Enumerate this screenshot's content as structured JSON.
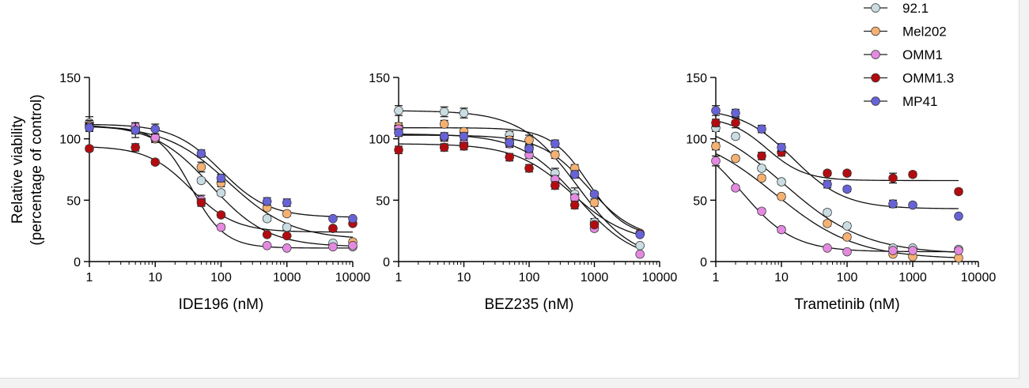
{
  "ylabel": [
    "Relative viability",
    "(percentage of control)"
  ],
  "legend": [
    {
      "name": "92.1",
      "color": "#c9dde3"
    },
    {
      "name": "Mel202",
      "color": "#f5b172"
    },
    {
      "name": "OMM1",
      "color": "#e38ae0"
    },
    {
      "name": "OMM1.3",
      "color": "#b30c10"
    },
    {
      "name": "MP41",
      "color": "#6763d6"
    }
  ],
  "chart_data": [
    {
      "type": "scatter",
      "xlabel": "IDE196 (nM)",
      "xscale": "log",
      "xlim": [
        1,
        10000
      ],
      "ylim": [
        0,
        150
      ],
      "xticks": [
        "1",
        "10",
        "100",
        "1000",
        "10000"
      ],
      "yticks": [
        "0",
        "50",
        "100",
        "150"
      ],
      "series": [
        {
          "name": "92.1",
          "x": [
            1,
            5,
            10,
            50,
            100,
            500,
            1000,
            5000,
            10000
          ],
          "y": [
            113,
            108,
            100,
            66,
            56,
            35,
            28,
            15,
            12
          ],
          "err": [
            5,
            3,
            3,
            2,
            2,
            2,
            2,
            1,
            1
          ],
          "fit": {
            "top": 112,
            "bottom": 12,
            "ic50": 70,
            "hill": 1.0
          }
        },
        {
          "name": "Mel202",
          "x": [
            1,
            5,
            10,
            50,
            100,
            500,
            1000,
            5000,
            10000
          ],
          "y": [
            111,
            107,
            100,
            77,
            64,
            44,
            39,
            27,
            16
          ],
          "err": [
            4,
            3,
            3,
            4,
            3,
            2,
            2,
            2,
            2
          ],
          "fit": {
            "top": 111,
            "bottom": 18,
            "ic50": 130,
            "hill": 0.9
          }
        },
        {
          "name": "OMM1",
          "x": [
            1,
            5,
            10,
            50,
            100,
            500,
            1000,
            5000,
            10000
          ],
          "y": [
            110,
            110,
            101,
            50,
            28,
            13,
            11,
            12,
            13
          ],
          "err": [
            3,
            3,
            3,
            4,
            2,
            1,
            1,
            1,
            1
          ],
          "fit": {
            "top": 110,
            "bottom": 11,
            "ic50": 35,
            "hill": 1.7
          }
        },
        {
          "name": "OMM1.3",
          "x": [
            1,
            5,
            10,
            50,
            100,
            500,
            1000,
            5000,
            10000
          ],
          "y": [
            92,
            93,
            81,
            48,
            38,
            22,
            21,
            27,
            31
          ],
          "err": [
            2,
            3,
            2,
            3,
            2,
            1,
            1,
            1,
            1
          ],
          "fit": {
            "top": 94,
            "bottom": 24,
            "ic50": 35,
            "hill": 1.3
          }
        },
        {
          "name": "MP41",
          "x": [
            1,
            5,
            10,
            50,
            100,
            500,
            1000,
            5000,
            10000
          ],
          "y": [
            109,
            107,
            108,
            88,
            68,
            49,
            48,
            35,
            35
          ],
          "err": [
            3,
            6,
            4,
            3,
            3,
            3,
            3,
            1,
            1
          ],
          "fit": {
            "top": 112,
            "bottom": 36,
            "ic50": 100,
            "hill": 1.2
          }
        }
      ]
    },
    {
      "type": "scatter",
      "xlabel": "BEZ235 (nM)",
      "xscale": "log",
      "xlim": [
        1,
        10000
      ],
      "ylim": [
        0,
        150
      ],
      "xticks": [
        "1",
        "10",
        "100",
        "1000",
        "10000"
      ],
      "yticks": [
        "0",
        "50",
        "100",
        "150"
      ],
      "series": [
        {
          "name": "92.1",
          "x": [
            1,
            5,
            10,
            50,
            100,
            250,
            500,
            1000,
            5000
          ],
          "y": [
            123,
            122,
            121,
            103,
            93,
            72,
            55,
            32,
            13
          ],
          "err": [
            4,
            4,
            4,
            3,
            3,
            4,
            5,
            3,
            1
          ],
          "fit": {
            "top": 123,
            "bottom": 0,
            "ic50": 550,
            "hill": 1.0
          }
        },
        {
          "name": "Mel202",
          "x": [
            1,
            5,
            10,
            50,
            100,
            250,
            500,
            1000,
            5000
          ],
          "y": [
            110,
            112,
            106,
            99,
            99,
            87,
            76,
            48,
            23
          ],
          "err": [
            3,
            3,
            3,
            3,
            4,
            3,
            3,
            3,
            1
          ],
          "fit": {
            "top": 109,
            "bottom": 20,
            "ic50": 800,
            "hill": 1.5
          }
        },
        {
          "name": "OMM1",
          "x": [
            1,
            5,
            10,
            50,
            100,
            250,
            500,
            1000,
            5000
          ],
          "y": [
            108,
            101,
            96,
            96,
            87,
            67,
            52,
            27,
            6
          ],
          "err": [
            3,
            3,
            3,
            3,
            3,
            3,
            3,
            2,
            1
          ],
          "fit": {
            "top": 104,
            "bottom": 0,
            "ic50": 550,
            "hill": 1.0
          }
        },
        {
          "name": "OMM1.3",
          "x": [
            1,
            5,
            10,
            50,
            100,
            250,
            500,
            1000,
            5000
          ],
          "y": [
            91,
            93,
            94,
            85,
            76,
            62,
            46,
            30,
            23
          ],
          "err": [
            3,
            3,
            3,
            3,
            3,
            3,
            3,
            2,
            1
          ],
          "fit": {
            "top": 96,
            "bottom": 15,
            "ic50": 450,
            "hill": 1.0
          }
        },
        {
          "name": "MP41",
          "x": [
            1,
            5,
            10,
            50,
            100,
            250,
            500,
            1000,
            5000
          ],
          "y": [
            105,
            102,
            102,
            97,
            92,
            96,
            71,
            55,
            22
          ],
          "err": [
            3,
            3,
            3,
            3,
            3,
            3,
            3,
            2,
            1
          ],
          "fit": {
            "top": 103,
            "bottom": 18,
            "ic50": 800,
            "hill": 1.2
          }
        }
      ]
    },
    {
      "type": "scatter",
      "xlabel": "Trametinib (nM)",
      "xscale": "log",
      "xlim": [
        1,
        10000
      ],
      "ylim": [
        0,
        150
      ],
      "xticks": [
        "1",
        "10",
        "100",
        "1000",
        "10000"
      ],
      "yticks": [
        "0",
        "50",
        "100",
        "150"
      ],
      "series": [
        {
          "name": "92.1",
          "x": [
            1,
            2,
            5,
            10,
            50,
            100,
            500,
            1000,
            5000
          ],
          "y": [
            109,
            102,
            76,
            65,
            40,
            29,
            11,
            11,
            10
          ],
          "err": [
            3,
            2,
            2,
            2,
            2,
            2,
            1,
            1,
            1
          ],
          "fit": {
            "top": 120,
            "bottom": 6,
            "ic50": 11,
            "hill": 0.7
          }
        },
        {
          "name": "Mel202",
          "x": [
            1,
            2,
            5,
            10,
            50,
            100,
            500,
            1000,
            5000
          ],
          "y": [
            94,
            84,
            68,
            53,
            31,
            20,
            6,
            4,
            3
          ],
          "err": [
            3,
            2,
            2,
            2,
            2,
            2,
            1,
            1,
            1
          ],
          "fit": {
            "top": 108,
            "bottom": 2,
            "ic50": 8,
            "hill": 0.7
          }
        },
        {
          "name": "OMM1",
          "x": [
            1,
            2,
            5,
            10,
            50,
            100,
            500,
            1000,
            5000
          ],
          "y": [
            82,
            60,
            41,
            26,
            11,
            8,
            9,
            9,
            9
          ],
          "err": [
            4,
            2,
            2,
            2,
            1,
            1,
            1,
            1,
            1
          ],
          "fit": {
            "top": 105,
            "bottom": 8,
            "ic50": 2.5,
            "hill": 1.1
          }
        },
        {
          "name": "OMM1.3",
          "x": [
            1,
            2,
            5,
            10,
            50,
            100,
            500,
            1000,
            5000
          ],
          "y": [
            113,
            113,
            86,
            89,
            72,
            72,
            68,
            71,
            57
          ],
          "err": [
            3,
            4,
            3,
            3,
            2,
            2,
            4,
            2,
            2
          ],
          "fit": {
            "top": 118,
            "bottom": 66,
            "ic50": 6,
            "hill": 1.5
          }
        },
        {
          "name": "MP41",
          "x": [
            1,
            2,
            5,
            10,
            50,
            100,
            500,
            1000,
            5000
          ],
          "y": [
            123,
            121,
            108,
            93,
            63,
            59,
            47,
            46,
            37
          ],
          "err": [
            4,
            3,
            3,
            3,
            3,
            2,
            3,
            2,
            1
          ],
          "fit": {
            "top": 125,
            "bottom": 43,
            "ic50": 15,
            "hill": 1.1
          }
        }
      ]
    }
  ]
}
